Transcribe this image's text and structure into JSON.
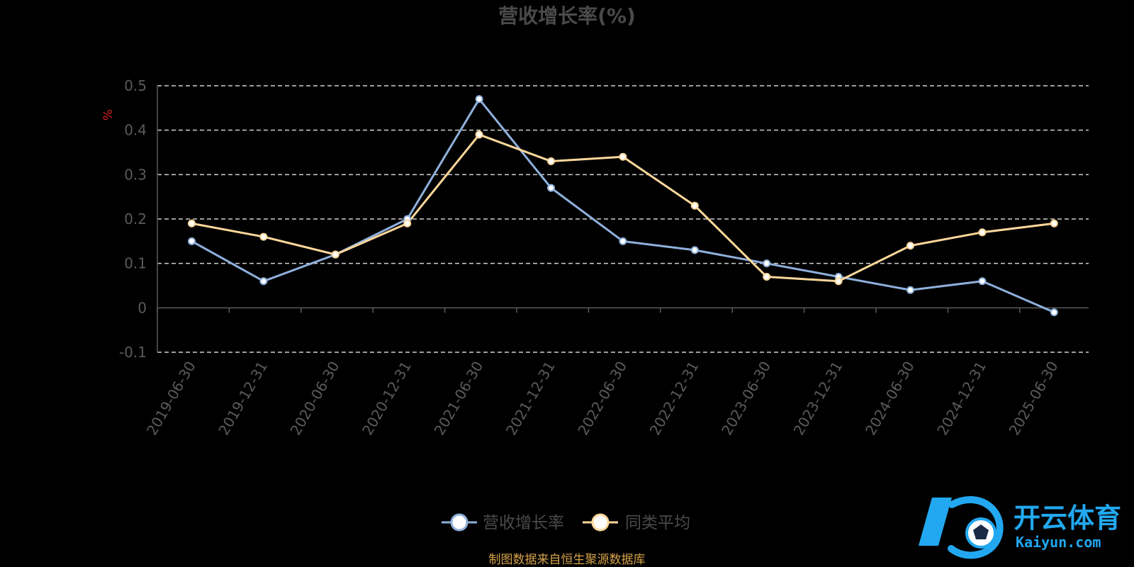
{
  "chart_data": {
    "type": "line",
    "title": "营收增长率(%)",
    "unit_label": "%",
    "categories": [
      "2019-06-30",
      "2019-12-31",
      "2020-06-30",
      "2020-12-31",
      "2021-06-30",
      "2021-12-31",
      "2022-06-30",
      "2022-12-31",
      "2023-06-30",
      "2023-12-31",
      "2024-06-30",
      "2024-12-31",
      "2025-06-30"
    ],
    "yticks": [
      "0.5",
      "0.4",
      "0.3",
      "0.2",
      "0.1",
      "0",
      "-0.1"
    ],
    "ylim": [
      -0.1,
      0.5
    ],
    "grid": true,
    "legend_position": "bottom-center",
    "series": [
      {
        "name": "营收增长率",
        "color": "#8fb0dc",
        "values": [
          0.15,
          0.06,
          0.12,
          0.2,
          0.47,
          0.27,
          0.15,
          0.13,
          0.1,
          0.07,
          0.04,
          0.06,
          -0.01
        ]
      },
      {
        "name": "同类平均",
        "color": "#fcd79b",
        "values": [
          0.19,
          0.16,
          0.12,
          0.19,
          0.39,
          0.33,
          0.34,
          0.23,
          0.07,
          0.06,
          0.14,
          0.17,
          0.19
        ]
      }
    ]
  },
  "footer": {
    "source": "制图数据来自恒生聚源数据库"
  },
  "watermark": {
    "brand_cn": "开云体育",
    "brand_en": "Kaiyun.com",
    "logo_icon": "kaiyun-soccer-logo-icon",
    "color": "#22a8f0"
  }
}
